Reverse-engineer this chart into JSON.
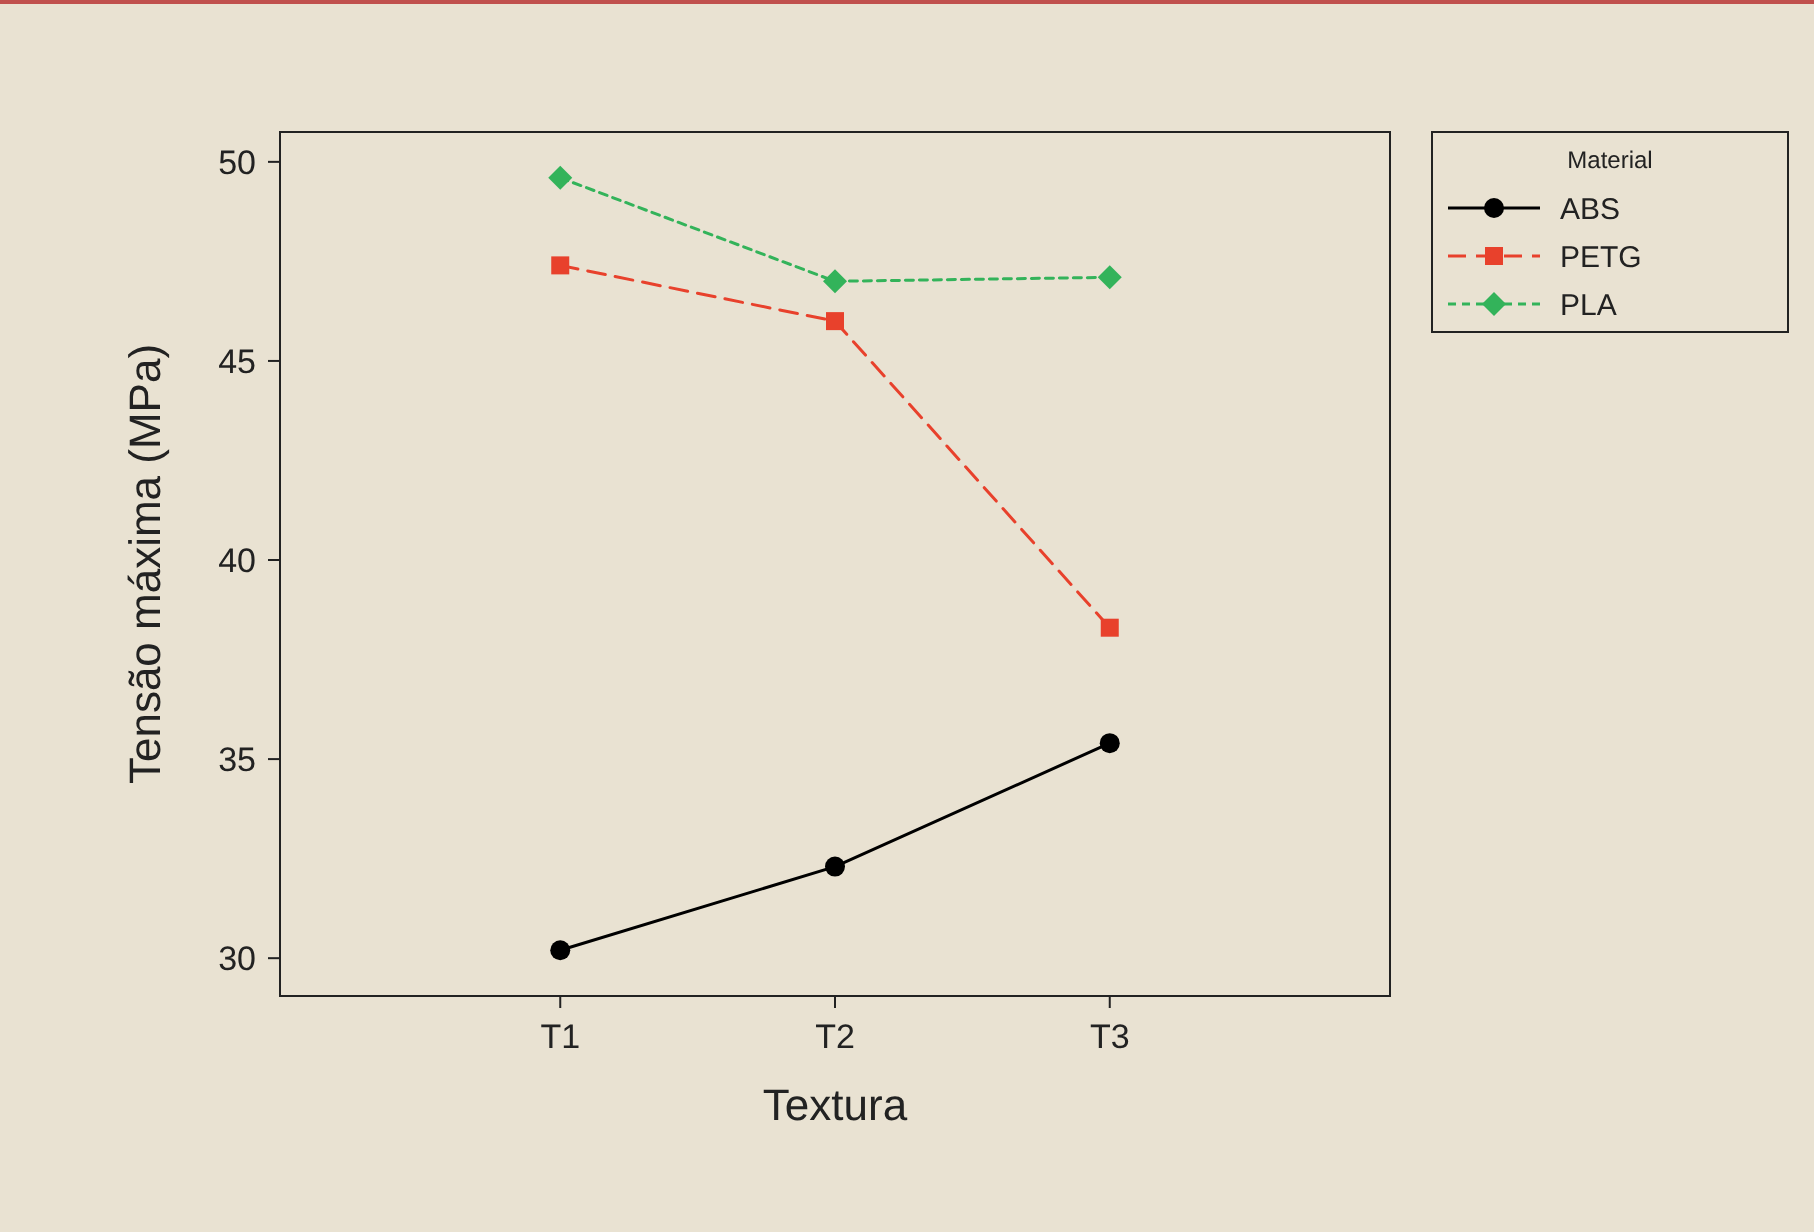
{
  "chart_data": {
    "type": "line",
    "xlabel": "Textura",
    "ylabel": "Tensão máxima (MPa)",
    "legend_title": "Material",
    "legend": "top right",
    "grid": false,
    "categories": [
      "T1",
      "T2",
      "T3"
    ],
    "ylim": [
      29.05,
      50.75
    ],
    "yticks": [
      30,
      35,
      40,
      45,
      50
    ],
    "series": [
      {
        "name": "ABS",
        "color": "#000000",
        "values": [
          30.2,
          32.3,
          35.4
        ],
        "marker": "circle",
        "line_style": "solid"
      },
      {
        "name": "PETG",
        "color": "#e8412c",
        "values": [
          47.4,
          46.0,
          38.3
        ],
        "marker": "square",
        "line_style": "dashed"
      },
      {
        "name": "PLA",
        "color": "#33b35a",
        "values": [
          49.6,
          47.0,
          47.1
        ],
        "marker": "diamond",
        "line_style": "dotted"
      }
    ]
  }
}
